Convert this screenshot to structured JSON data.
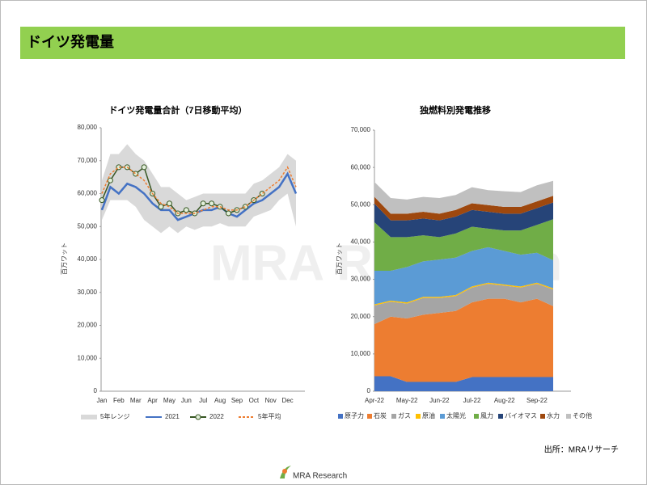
{
  "header": {
    "title": "ドイツ発電量"
  },
  "watermark": "MRA Research",
  "source": "出所：MRAリサーチ",
  "logo": "MRA Research",
  "chart_data": [
    {
      "type": "line",
      "title": "ドイツ発電量合計（7日移動平均）",
      "y_label": "百万ワット",
      "categories": [
        "Jan",
        null,
        "Feb",
        null,
        "Mar",
        null,
        "Apr",
        null,
        "May",
        null,
        "Jun",
        null,
        "Jul",
        null,
        "Aug",
        null,
        "Sep",
        null,
        "Oct",
        null,
        "Nov",
        null,
        "Dec",
        null
      ],
      "ylim": [
        0,
        80000
      ],
      "yticks": [
        0,
        {
          "value": 10000,
          "label": "10,000"
        },
        {
          "value": 20000,
          "label": "20,000"
        },
        {
          "value": 30000,
          "label": "30,000"
        },
        {
          "value": 40000,
          "label": "40,000"
        },
        {
          "value": 50000,
          "label": "50,000"
        },
        {
          "value": 60000,
          "label": "60,000"
        },
        {
          "value": 70000,
          "label": "70,000"
        },
        {
          "value": 80000,
          "label": "80,000"
        }
      ],
      "series": [
        {
          "name": "5年レンジ",
          "color": "#d9d9d9",
          "kind": "range",
          "values": [
            64000,
            72000,
            72000,
            75000,
            72000,
            70000,
            66000,
            62000,
            62000,
            60000,
            58000,
            59000,
            60000,
            60000,
            60000,
            60000,
            60000,
            60000,
            63000,
            64000,
            66000,
            68000,
            72000,
            70000
          ],
          "low": [
            52000,
            58000,
            58000,
            58000,
            56000,
            52000,
            50000,
            48000,
            50000,
            48000,
            50000,
            49000,
            50000,
            50000,
            51000,
            50000,
            50000,
            50000,
            53000,
            54000,
            55000,
            58000,
            60000,
            50000
          ]
        },
        {
          "name": "2021",
          "color": "#4472c4",
          "kind": "line",
          "values": [
            55000,
            62000,
            60000,
            63000,
            62000,
            60000,
            57000,
            55000,
            55000,
            52000,
            53000,
            54000,
            55000,
            55000,
            56000,
            54000,
            53000,
            55000,
            57000,
            58000,
            60000,
            62000,
            66000,
            60000
          ]
        },
        {
          "name": "2022",
          "color": "#375623",
          "kind": "marker",
          "values": [
            58000,
            64000,
            68000,
            68000,
            66000,
            68000,
            60000,
            56000,
            57000,
            54000,
            55000,
            54000,
            57000,
            57000,
            56000,
            54000,
            55000,
            56000,
            58000,
            60000,
            null,
            null,
            null,
            null
          ]
        },
        {
          "name": "5年平均",
          "color": "#ed7d31",
          "kind": "dashed",
          "values": [
            60000,
            66000,
            68000,
            68000,
            66000,
            64000,
            60000,
            57000,
            56000,
            54000,
            54000,
            54000,
            55000,
            56000,
            56000,
            55000,
            55000,
            56000,
            58000,
            60000,
            62000,
            64000,
            68000,
            62000
          ]
        }
      ]
    },
    {
      "type": "stacked_area",
      "title": "独燃料別発電推移",
      "y_label": "百万ワット",
      "categories": [
        "Apr-22",
        null,
        "May-22",
        null,
        "Jun-22",
        null,
        "Jul-22",
        null,
        "Aug-22",
        null,
        "Sep-22",
        null
      ],
      "ylim": [
        0,
        70000
      ],
      "yticks": [
        0,
        {
          "value": 10000,
          "label": "10,000"
        },
        {
          "value": 20000,
          "label": "20,000"
        },
        {
          "value": 30000,
          "label": "30,000"
        },
        {
          "value": 40000,
          "label": "40,000"
        },
        {
          "value": 50000,
          "label": "50,000"
        },
        {
          "value": 60000,
          "label": "60,000"
        },
        {
          "value": 70000,
          "label": "70,000"
        }
      ],
      "series": [
        {
          "name": "原子力",
          "color": "#4472c4",
          "values": [
            4000,
            4000,
            2500,
            2500,
            2500,
            2500,
            3800,
            3800,
            3800,
            3800,
            3800,
            3800
          ]
        },
        {
          "name": "石炭",
          "color": "#ed7d31",
          "values": [
            14000,
            16000,
            17000,
            18000,
            18500,
            19000,
            20000,
            21000,
            21000,
            20000,
            21000,
            19000
          ]
        },
        {
          "name": "ガス",
          "color": "#a5a5a5",
          "values": [
            5000,
            4000,
            4000,
            4500,
            4000,
            4000,
            4000,
            4000,
            3500,
            4000,
            4000,
            4500
          ]
        },
        {
          "name": "原油",
          "color": "#ffc000",
          "values": [
            300,
            300,
            300,
            300,
            300,
            300,
            300,
            300,
            300,
            300,
            300,
            300
          ]
        },
        {
          "name": "太陽光",
          "color": "#5b9bd5",
          "values": [
            9000,
            8000,
            9500,
            9500,
            10000,
            10000,
            9500,
            9500,
            9000,
            8500,
            8000,
            7500
          ]
        },
        {
          "name": "風力",
          "color": "#70ad47",
          "values": [
            13000,
            9000,
            8000,
            7000,
            6000,
            6500,
            6500,
            5000,
            5500,
            6500,
            7500,
            11000
          ]
        },
        {
          "name": "バイオマス",
          "color": "#264478",
          "values": [
            5000,
            4500,
            4500,
            4500,
            4500,
            4500,
            4500,
            4500,
            4500,
            4500,
            4500,
            4500
          ]
        },
        {
          "name": "水力",
          "color": "#9e480e",
          "values": [
            1800,
            1800,
            1800,
            1800,
            1800,
            1800,
            1800,
            1800,
            1800,
            1800,
            1800,
            1800
          ]
        },
        {
          "name": "その他",
          "color": "#c0c0c0",
          "values": [
            4000,
            4200,
            3800,
            4000,
            4200,
            4000,
            4300,
            4000,
            4200,
            4000,
            4300,
            4000
          ]
        }
      ]
    }
  ]
}
